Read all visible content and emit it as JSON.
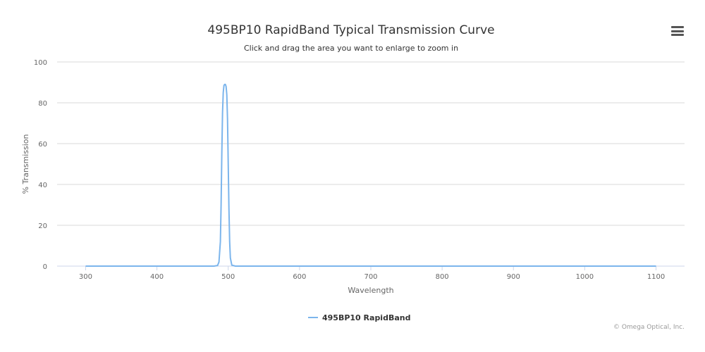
{
  "chart_data": {
    "type": "line",
    "title": "495BP10 RapidBand Typical Transmission Curve",
    "subtitle": "Click and drag the area you want to enlarge to zoom in",
    "xlabel": "Wavelength",
    "ylabel": "% Transmission",
    "xlim": [
      260,
      1140
    ],
    "ylim": [
      0,
      100
    ],
    "x_ticks": [
      300,
      400,
      500,
      600,
      700,
      800,
      900,
      1000,
      1100
    ],
    "y_ticks": [
      0,
      20,
      40,
      60,
      80,
      100
    ],
    "grid": "horizontal",
    "legend_position": "bottom-center",
    "series": [
      {
        "name": "495BP10 RapidBand",
        "color": "#7cb5ec",
        "x": [
          300,
          400,
          480,
          485,
          487,
          489,
          490,
          491,
          492,
          493,
          494,
          495,
          496,
          497,
          498,
          499,
          500,
          501,
          502,
          503,
          505,
          510,
          600,
          700,
          800,
          900,
          1000,
          1100
        ],
        "y": [
          0,
          0,
          0,
          0.3,
          2,
          12,
          30,
          55,
          75,
          85,
          88.5,
          89,
          89,
          88,
          84,
          72,
          50,
          28,
          12,
          4,
          0.5,
          0,
          0,
          0,
          0,
          0,
          0,
          0
        ]
      }
    ]
  },
  "credit": "© Omega Optical, Inc.",
  "menu_icon": "hamburger-menu-icon"
}
